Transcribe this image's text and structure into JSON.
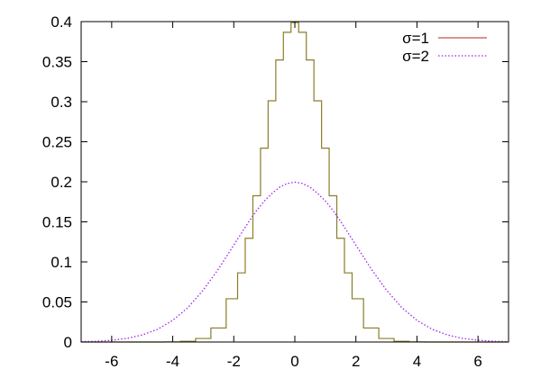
{
  "chart_data": {
    "type": "line",
    "title": "",
    "xlabel": "",
    "ylabel": "",
    "xlim": [
      -7,
      7
    ],
    "ylim": [
      0,
      0.4
    ],
    "x_ticks": [
      -6,
      -4,
      -2,
      0,
      2,
      4,
      6
    ],
    "x_tick_labels": [
      "-6",
      "-4",
      "-2",
      "0",
      "2",
      "4",
      "6"
    ],
    "y_ticks": [
      0,
      0.05,
      0.1,
      0.15,
      0.2,
      0.25,
      0.3,
      0.35,
      0.4
    ],
    "y_tick_labels": [
      "0",
      "0.05",
      "0.1",
      "0.15",
      "0.2",
      "0.25",
      "0.3",
      "0.35",
      "0.4"
    ],
    "grid": false,
    "legend_position": "top-right",
    "x": [
      -7.0,
      -6.5,
      -6.0,
      -5.5,
      -5.0,
      -4.5,
      -4.0,
      -3.5,
      -3.0,
      -2.5,
      -2.0,
      -1.75,
      -1.5,
      -1.25,
      -1.0,
      -0.75,
      -0.5,
      -0.25,
      0.0,
      0.25,
      0.5,
      0.75,
      1.0,
      1.25,
      1.5,
      1.75,
      2.0,
      2.5,
      3.0,
      3.5,
      4.0,
      4.5,
      5.0,
      5.5,
      6.0,
      6.5,
      7.0
    ],
    "series": [
      {
        "name": "σ=1",
        "style": "step",
        "color": "#8b7d2a",
        "legend_color": "#c0504d",
        "values": [
          0.0,
          0.0,
          0.0,
          0.0,
          0.0,
          0.0,
          0.0001,
          0.0009,
          0.0044,
          0.0175,
          0.054,
          0.0863,
          0.1295,
          0.1826,
          0.242,
          0.3011,
          0.3521,
          0.3867,
          0.3989,
          0.3867,
          0.3521,
          0.3011,
          0.242,
          0.1826,
          0.1295,
          0.0863,
          0.054,
          0.0175,
          0.0044,
          0.0009,
          0.0001,
          0.0,
          0.0,
          0.0,
          0.0,
          0.0,
          0.0
        ]
      },
      {
        "name": "σ=2",
        "style": "dotted",
        "color": "#a020f0",
        "values": [
          0.0004,
          0.0009,
          0.0022,
          0.0045,
          0.0088,
          0.0158,
          0.027,
          0.0431,
          0.0648,
          0.0913,
          0.121,
          0.1359,
          0.1506,
          0.1642,
          0.176,
          0.1854,
          0.1933,
          0.1979,
          0.1995,
          0.1979,
          0.1933,
          0.1854,
          0.176,
          0.1642,
          0.1506,
          0.1359,
          0.121,
          0.0913,
          0.0648,
          0.0431,
          0.027,
          0.0158,
          0.0088,
          0.0045,
          0.0022,
          0.0009,
          0.0004
        ]
      }
    ]
  }
}
